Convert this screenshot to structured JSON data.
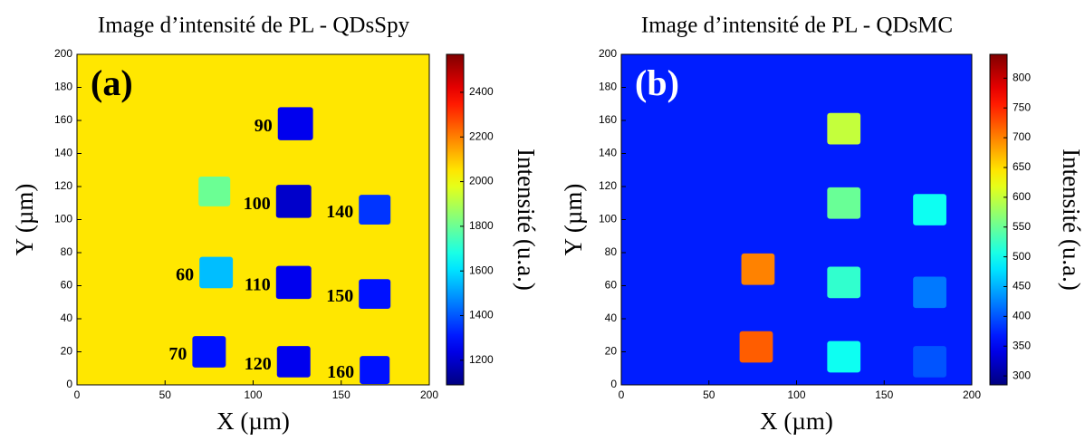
{
  "chart_data": [
    {
      "type": "heatmap",
      "title": "Image d’intensité de PL - QDsSpy",
      "panel_label": "(a)",
      "panel_label_color": "#000000",
      "xlabel": "X (µm)",
      "ylabel": "Y (µm)",
      "colorbar_label": "Intensité (u.a.)",
      "colormap": "jet",
      "xlim": [
        0,
        200
      ],
      "ylim": [
        0,
        200
      ],
      "xticks": [
        0,
        50,
        100,
        150,
        200
      ],
      "yticks": [
        0,
        20,
        40,
        60,
        80,
        100,
        120,
        140,
        160,
        180,
        200
      ],
      "clim": [
        1090,
        2570
      ],
      "cticks": [
        1200,
        1400,
        1600,
        1800,
        2000,
        2200,
        2400
      ],
      "background": 2050,
      "regions": [
        {
          "label": "90",
          "x": 124,
          "y": 158,
          "size": 20,
          "value": 1250
        },
        {
          "label": "100",
          "x": 123,
          "y": 111,
          "size": 20,
          "value": 1200
        },
        {
          "label": "140",
          "x": 169,
          "y": 106,
          "size": 18,
          "value": 1350
        },
        {
          "label": "60",
          "x": 79,
          "y": 68,
          "size": 19,
          "value": 1550
        },
        {
          "label": "110",
          "x": 123,
          "y": 62,
          "size": 20,
          "value": 1250
        },
        {
          "label": "150",
          "x": 169,
          "y": 55,
          "size": 18,
          "value": 1300
        },
        {
          "label": "70",
          "x": 75,
          "y": 20,
          "size": 19,
          "value": 1300
        },
        {
          "label": "120",
          "x": 123,
          "y": 14,
          "size": 19,
          "value": 1250
        },
        {
          "label": "160",
          "x": 169,
          "y": 9,
          "size": 17,
          "value": 1300
        },
        {
          "x": 78,
          "y": 117,
          "size": 18,
          "value": 1800
        }
      ]
    },
    {
      "type": "heatmap",
      "title": "Image d’intensité de PL - QDsMC",
      "panel_label": "(b)",
      "panel_label_color": "#ffffff",
      "xlabel": "X (µm)",
      "ylabel": "Y (µm)",
      "colorbar_label": "Intensité (u.a.)",
      "colormap": "jet",
      "xlim": [
        0,
        200
      ],
      "ylim": [
        0,
        200
      ],
      "xticks": [
        0,
        50,
        100,
        150,
        200
      ],
      "yticks": [
        0,
        20,
        40,
        60,
        80,
        100,
        120,
        140,
        160,
        180,
        200
      ],
      "clim": [
        285,
        840
      ],
      "cticks": [
        300,
        350,
        400,
        450,
        500,
        550,
        600,
        650,
        700,
        750,
        800
      ],
      "background": 370,
      "regions": [
        {
          "x": 127,
          "y": 155,
          "size": 19,
          "value": 600
        },
        {
          "x": 127,
          "y": 110,
          "size": 19,
          "value": 550
        },
        {
          "x": 176,
          "y": 106,
          "size": 19,
          "value": 500
        },
        {
          "x": 78,
          "y": 70,
          "size": 19,
          "value": 700
        },
        {
          "x": 127,
          "y": 62,
          "size": 19,
          "value": 520
        },
        {
          "x": 176,
          "y": 56,
          "size": 19,
          "value": 420
        },
        {
          "x": 77,
          "y": 23,
          "size": 19,
          "value": 720
        },
        {
          "x": 127,
          "y": 17,
          "size": 19,
          "value": 500
        },
        {
          "x": 176,
          "y": 14,
          "size": 19,
          "value": 400
        }
      ]
    }
  ]
}
